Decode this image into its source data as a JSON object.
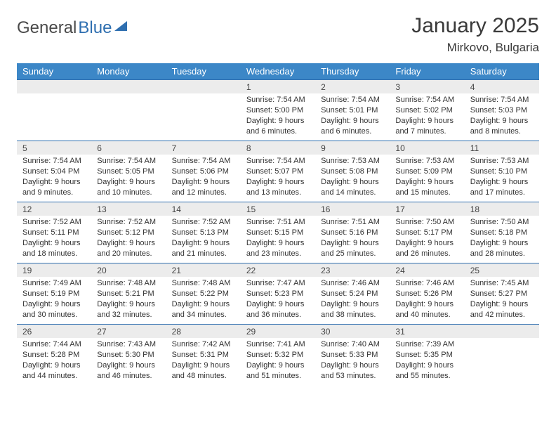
{
  "logo": {
    "part1": "General",
    "part2": "Blue"
  },
  "title": "January 2025",
  "location": "Mirkovo, Bulgaria",
  "colors": {
    "header_bg": "#3c87c7",
    "header_text": "#ffffff",
    "rule": "#2f6fb0",
    "daynum_bg": "#ececec",
    "text": "#333333",
    "logo_gray": "#4a4a4a",
    "logo_blue": "#2f6fb0"
  },
  "dow": [
    "Sunday",
    "Monday",
    "Tuesday",
    "Wednesday",
    "Thursday",
    "Friday",
    "Saturday"
  ],
  "weeks": [
    [
      {
        "n": "",
        "sr": "",
        "ss": "",
        "dl": ""
      },
      {
        "n": "",
        "sr": "",
        "ss": "",
        "dl": ""
      },
      {
        "n": "",
        "sr": "",
        "ss": "",
        "dl": ""
      },
      {
        "n": "1",
        "sr": "7:54 AM",
        "ss": "5:00 PM",
        "dl": "9 hours and 6 minutes."
      },
      {
        "n": "2",
        "sr": "7:54 AM",
        "ss": "5:01 PM",
        "dl": "9 hours and 6 minutes."
      },
      {
        "n": "3",
        "sr": "7:54 AM",
        "ss": "5:02 PM",
        "dl": "9 hours and 7 minutes."
      },
      {
        "n": "4",
        "sr": "7:54 AM",
        "ss": "5:03 PM",
        "dl": "9 hours and 8 minutes."
      }
    ],
    [
      {
        "n": "5",
        "sr": "7:54 AM",
        "ss": "5:04 PM",
        "dl": "9 hours and 9 minutes."
      },
      {
        "n": "6",
        "sr": "7:54 AM",
        "ss": "5:05 PM",
        "dl": "9 hours and 10 minutes."
      },
      {
        "n": "7",
        "sr": "7:54 AM",
        "ss": "5:06 PM",
        "dl": "9 hours and 12 minutes."
      },
      {
        "n": "8",
        "sr": "7:54 AM",
        "ss": "5:07 PM",
        "dl": "9 hours and 13 minutes."
      },
      {
        "n": "9",
        "sr": "7:53 AM",
        "ss": "5:08 PM",
        "dl": "9 hours and 14 minutes."
      },
      {
        "n": "10",
        "sr": "7:53 AM",
        "ss": "5:09 PM",
        "dl": "9 hours and 15 minutes."
      },
      {
        "n": "11",
        "sr": "7:53 AM",
        "ss": "5:10 PM",
        "dl": "9 hours and 17 minutes."
      }
    ],
    [
      {
        "n": "12",
        "sr": "7:52 AM",
        "ss": "5:11 PM",
        "dl": "9 hours and 18 minutes."
      },
      {
        "n": "13",
        "sr": "7:52 AM",
        "ss": "5:12 PM",
        "dl": "9 hours and 20 minutes."
      },
      {
        "n": "14",
        "sr": "7:52 AM",
        "ss": "5:13 PM",
        "dl": "9 hours and 21 minutes."
      },
      {
        "n": "15",
        "sr": "7:51 AM",
        "ss": "5:15 PM",
        "dl": "9 hours and 23 minutes."
      },
      {
        "n": "16",
        "sr": "7:51 AM",
        "ss": "5:16 PM",
        "dl": "9 hours and 25 minutes."
      },
      {
        "n": "17",
        "sr": "7:50 AM",
        "ss": "5:17 PM",
        "dl": "9 hours and 26 minutes."
      },
      {
        "n": "18",
        "sr": "7:50 AM",
        "ss": "5:18 PM",
        "dl": "9 hours and 28 minutes."
      }
    ],
    [
      {
        "n": "19",
        "sr": "7:49 AM",
        "ss": "5:19 PM",
        "dl": "9 hours and 30 minutes."
      },
      {
        "n": "20",
        "sr": "7:48 AM",
        "ss": "5:21 PM",
        "dl": "9 hours and 32 minutes."
      },
      {
        "n": "21",
        "sr": "7:48 AM",
        "ss": "5:22 PM",
        "dl": "9 hours and 34 minutes."
      },
      {
        "n": "22",
        "sr": "7:47 AM",
        "ss": "5:23 PM",
        "dl": "9 hours and 36 minutes."
      },
      {
        "n": "23",
        "sr": "7:46 AM",
        "ss": "5:24 PM",
        "dl": "9 hours and 38 minutes."
      },
      {
        "n": "24",
        "sr": "7:46 AM",
        "ss": "5:26 PM",
        "dl": "9 hours and 40 minutes."
      },
      {
        "n": "25",
        "sr": "7:45 AM",
        "ss": "5:27 PM",
        "dl": "9 hours and 42 minutes."
      }
    ],
    [
      {
        "n": "26",
        "sr": "7:44 AM",
        "ss": "5:28 PM",
        "dl": "9 hours and 44 minutes."
      },
      {
        "n": "27",
        "sr": "7:43 AM",
        "ss": "5:30 PM",
        "dl": "9 hours and 46 minutes."
      },
      {
        "n": "28",
        "sr": "7:42 AM",
        "ss": "5:31 PM",
        "dl": "9 hours and 48 minutes."
      },
      {
        "n": "29",
        "sr": "7:41 AM",
        "ss": "5:32 PM",
        "dl": "9 hours and 51 minutes."
      },
      {
        "n": "30",
        "sr": "7:40 AM",
        "ss": "5:33 PM",
        "dl": "9 hours and 53 minutes."
      },
      {
        "n": "31",
        "sr": "7:39 AM",
        "ss": "5:35 PM",
        "dl": "9 hours and 55 minutes."
      },
      {
        "n": "",
        "sr": "",
        "ss": "",
        "dl": ""
      }
    ]
  ],
  "labels": {
    "sunrise": "Sunrise:",
    "sunset": "Sunset:",
    "daylight": "Daylight:"
  }
}
